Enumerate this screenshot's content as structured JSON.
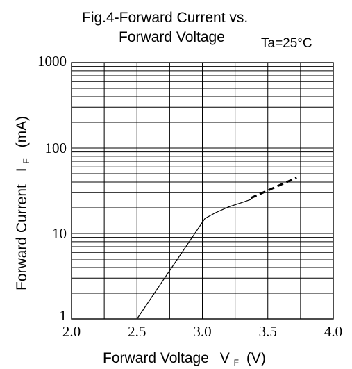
{
  "chart_data": {
    "type": "line",
    "title_line1": "Fig.4-Forward Current vs.",
    "title_line2": "Forward Voltage",
    "condition": "Ta=25°C",
    "xlabel": "Forward Voltage",
    "xlabel_symbol": "V",
    "xlabel_subscript": "F",
    "xlabel_unit": "(V)",
    "ylabel": "Forward Current",
    "ylabel_symbol": "I",
    "ylabel_subscript": "F",
    "ylabel_unit": "(mA)",
    "x_ticks": [
      "2.0",
      "2.5",
      "3.0",
      "3.5",
      "4.0"
    ],
    "x_tick_values": [
      2.0,
      2.5,
      3.0,
      3.5,
      4.0
    ],
    "y_ticks": [
      "1",
      "10",
      "100",
      "1000"
    ],
    "y_tick_values": [
      1,
      10,
      100,
      1000
    ],
    "xlim": [
      2.0,
      4.0
    ],
    "ylim": [
      1,
      1000
    ],
    "y_scale": "log",
    "grid": true,
    "series": [
      {
        "style": "solid",
        "points": [
          [
            2.5,
            1
          ],
          [
            3.02,
            15
          ],
          [
            3.1,
            17.5
          ],
          [
            3.2,
            20.5
          ],
          [
            3.3,
            23
          ],
          [
            3.37,
            25
          ]
        ]
      },
      {
        "style": "dashed",
        "points": [
          [
            3.37,
            26
          ],
          [
            3.72,
            45
          ]
        ]
      }
    ]
  }
}
